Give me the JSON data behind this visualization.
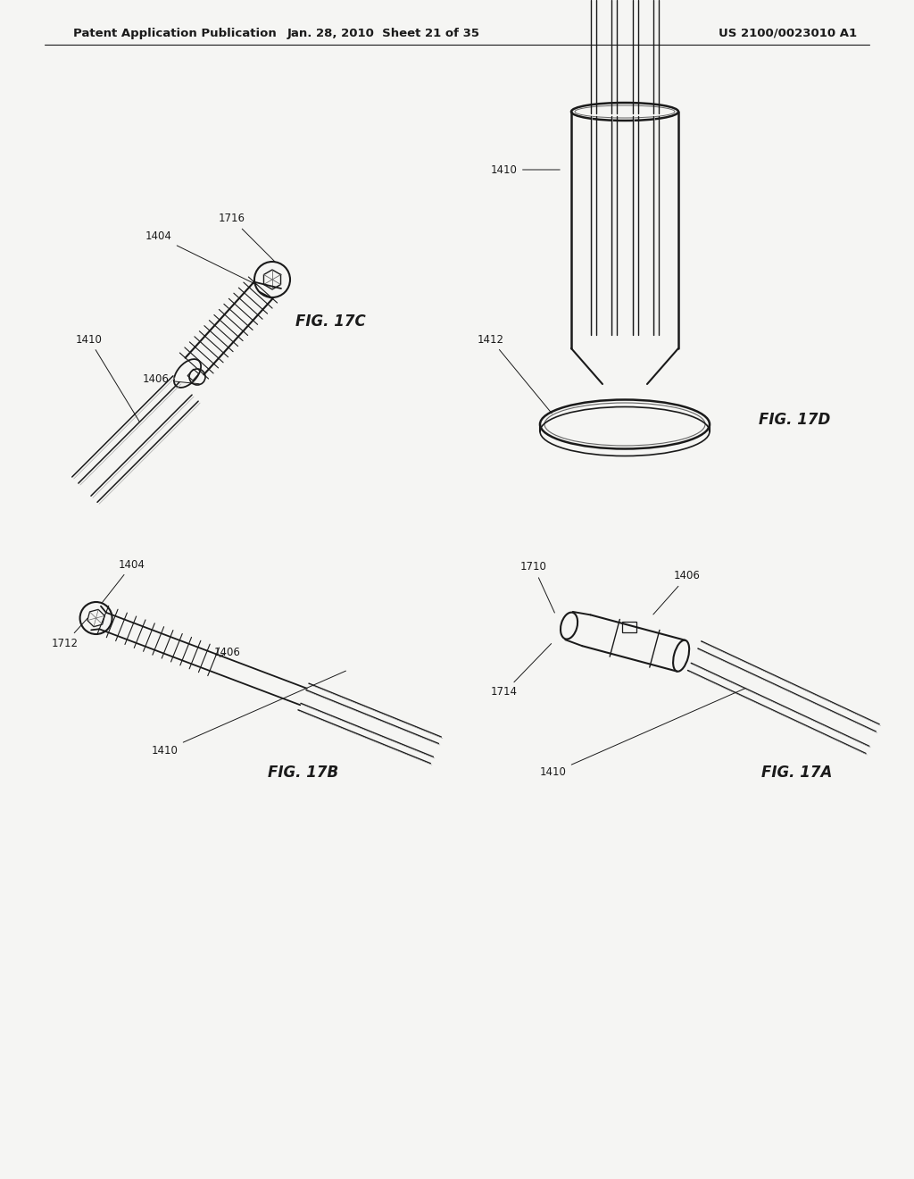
{
  "bg": "#f0f0f0",
  "page_bg": "#f5f5f3",
  "header_left": "Patent Application Publication",
  "header_center": "Jan. 28, 2010  Sheet 21 of 35",
  "header_right": "US 2100/0023010 A1",
  "line_color": "#2a2a2a",
  "text_color": "#1a1a1a"
}
